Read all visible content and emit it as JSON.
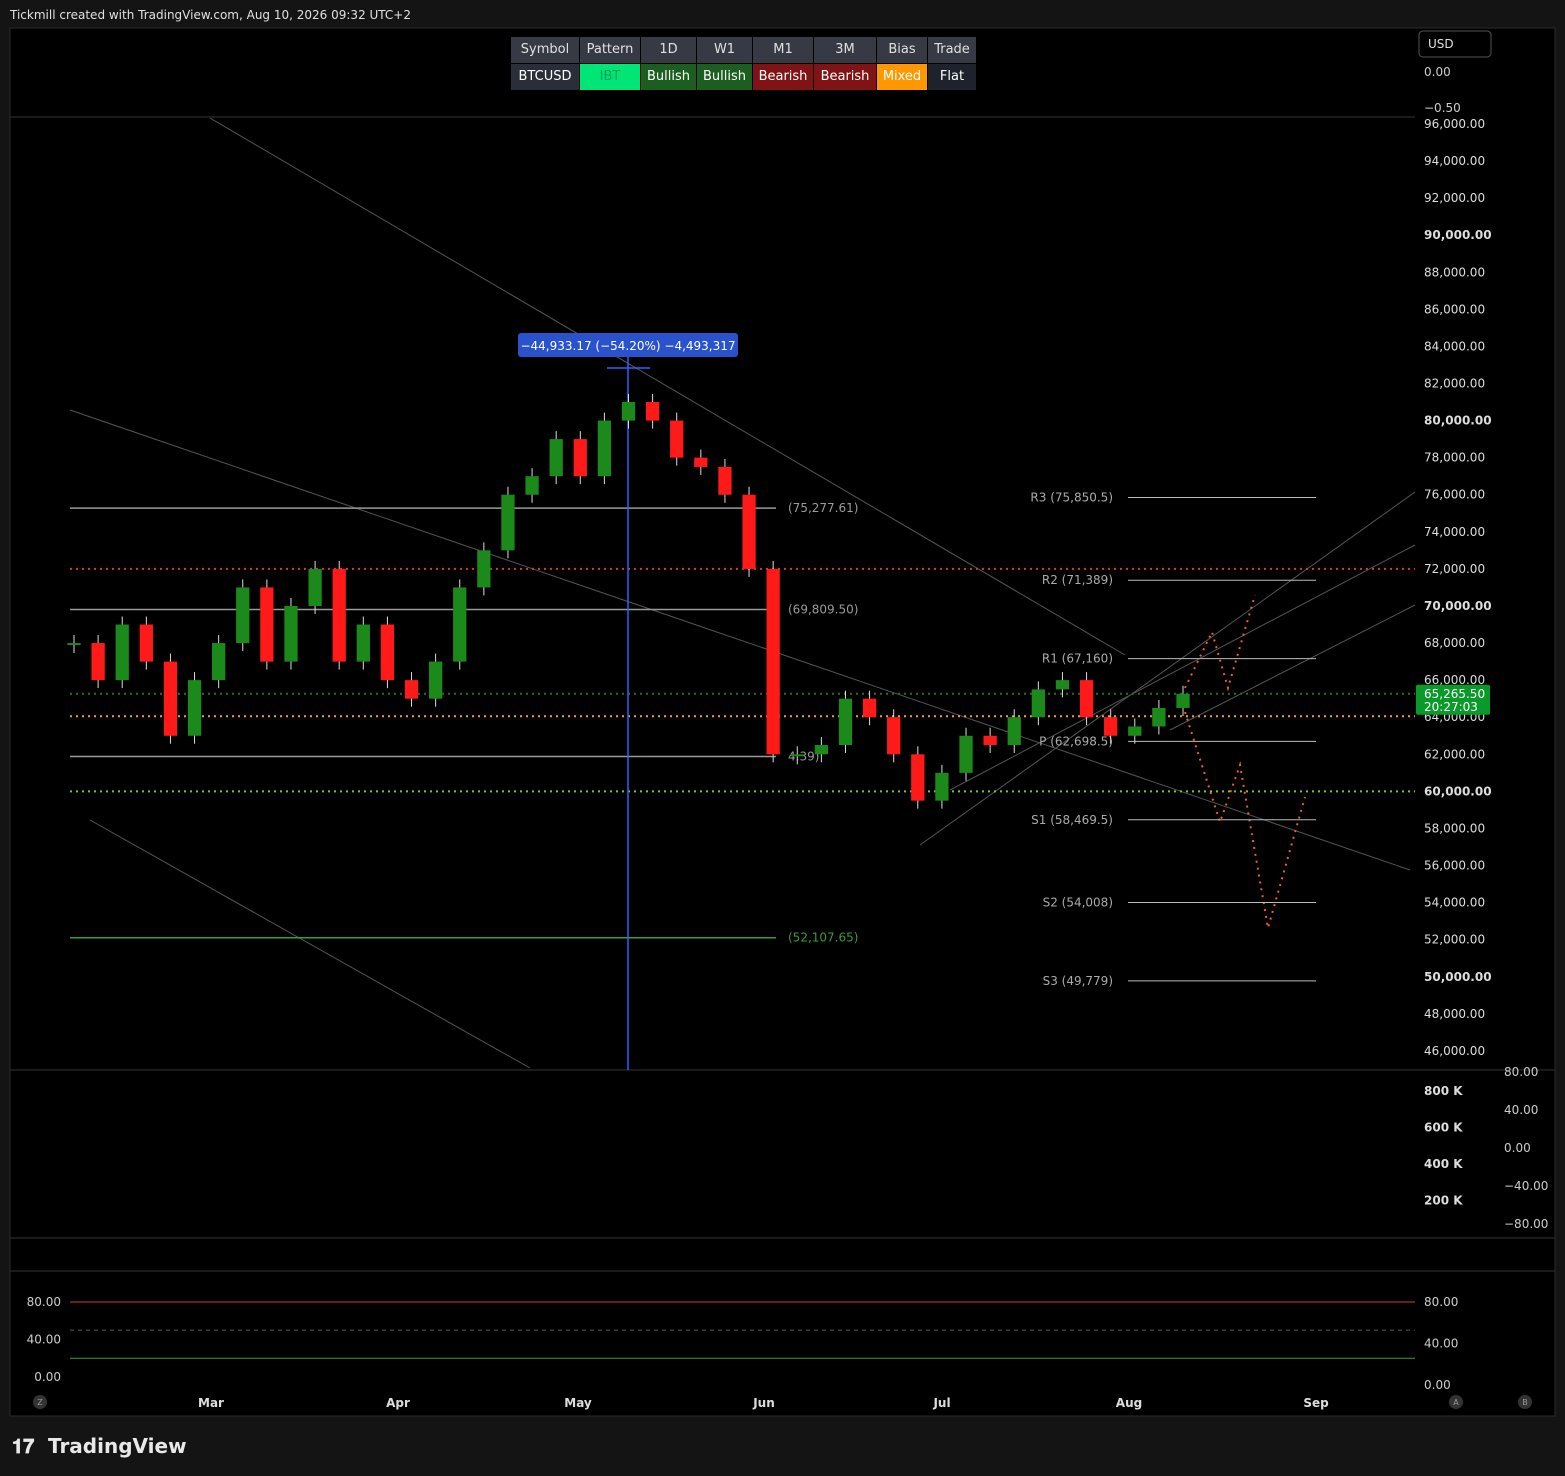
{
  "header": {
    "text": "Tickmill created with TradingView.com, Aug 10, 2026 09:32 UTC+2"
  },
  "table": {
    "header": [
      "Symbol",
      "Pattern",
      "1D",
      "W1",
      "M1",
      "3M",
      "Bias",
      "Trade"
    ],
    "row": [
      {
        "text": "BTCUSD",
        "bg": "#2a2e39",
        "fg": "#ffffff"
      },
      {
        "text": "IBT",
        "bg": "#00e676",
        "fg": "#00a152"
      },
      {
        "text": "Bullish",
        "bg": "#1b5e20",
        "fg": "#ffffff"
      },
      {
        "text": "Bullish",
        "bg": "#1b5e20",
        "fg": "#ffffff"
      },
      {
        "text": "Bearish",
        "bg": "#801414",
        "fg": "#ffffff"
      },
      {
        "text": "Bearish",
        "bg": "#801414",
        "fg": "#ffffff"
      },
      {
        "text": "Mixed",
        "bg": "#ff9800",
        "fg": "#ffffff"
      },
      {
        "text": "Flat",
        "bg": "#1e222d",
        "fg": "#ffffff"
      }
    ]
  },
  "currency": "USD",
  "top_pane": {
    "ylim": [
      -0.611,
      0.583
    ],
    "yticks": [
      {
        "value": 0,
        "label": "0.00"
      },
      {
        "value": -0.5,
        "label": "−0.50"
      }
    ]
  },
  "chart_data": {
    "type": "candlestick",
    "title": "BTCUSD",
    "closes": [
      68000,
      66000,
      69000,
      67000,
      63000,
      66000,
      68000,
      71000,
      67000,
      70000,
      72000,
      67000,
      69000,
      66000,
      65000,
      67000,
      71000,
      73000,
      76000,
      77000,
      79000,
      77000,
      80000,
      81000,
      80000,
      78000,
      77500,
      76000,
      72000,
      62000,
      62000,
      62500,
      65000,
      64000,
      62000,
      59500,
      61000,
      63000,
      62500,
      64000,
      65500,
      66000,
      64000,
      63000,
      63500,
      64500,
      65265.5
    ],
    "up_color": "#1b8a1b",
    "down_color": "#ff1a1a",
    "ylim": [
      45080,
      96320
    ],
    "yticks": [
      {
        "value": 96000,
        "label": "96,000.00"
      },
      {
        "value": 94000,
        "label": "94,000.00"
      },
      {
        "value": 92000,
        "label": "92,000.00"
      },
      {
        "value": 90000,
        "label": "90,000.00"
      },
      {
        "value": 88000,
        "label": "88,000.00"
      },
      {
        "value": 86000,
        "label": "86,000.00"
      },
      {
        "value": 84000,
        "label": "84,000.00"
      },
      {
        "value": 82000,
        "label": "82,000.00"
      },
      {
        "value": 80000,
        "label": "80,000.00"
      },
      {
        "value": 78000,
        "label": "78,000.00"
      },
      {
        "value": 76000,
        "label": "76,000.00"
      },
      {
        "value": 74000,
        "label": "74,000.00"
      },
      {
        "value": 72000,
        "label": "72,000.00"
      },
      {
        "value": 70000,
        "label": "70,000.00"
      },
      {
        "value": 68000,
        "label": "68,000.00"
      },
      {
        "value": 66000,
        "label": "66,000.00"
      },
      {
        "value": 64000,
        "label": "64,000.00"
      },
      {
        "value": 62000,
        "label": "62,000.00"
      },
      {
        "value": 60000,
        "label": "60,000.00"
      },
      {
        "value": 58000,
        "label": "58,000.00"
      },
      {
        "value": 56000,
        "label": "56,000.00"
      },
      {
        "value": 54000,
        "label": "54,000.00"
      },
      {
        "value": 52000,
        "label": "52,000.00"
      },
      {
        "value": 50000,
        "label": "50,000.00"
      },
      {
        "value": 48000,
        "label": "48,000.00"
      },
      {
        "value": 46000,
        "label": "46,000.00"
      }
    ],
    "months": [
      "Mar",
      "Apr",
      "May",
      "Jun",
      "Jul",
      "Aug",
      "Sep"
    ],
    "levels": [
      {
        "value": 75277.61,
        "label": "(75,277.61)",
        "color": "#9a9a9a"
      },
      {
        "value": 69809.5,
        "label": "(69,809.50)",
        "color": "#9a9a9a"
      },
      {
        "value": 61884.39,
        "label": "4.39)",
        "color": "#9a9a9a"
      },
      {
        "value": 52107.65,
        "label": "(52,107.65)",
        "color": "#3b9a3b"
      }
    ],
    "pivots": [
      {
        "value": 75850.5,
        "label": "R3 (75,850.5)"
      },
      {
        "value": 71389,
        "label": "R2 (71,389)"
      },
      {
        "value": 67160,
        "label": "R1 (67,160)"
      },
      {
        "value": 62698.5,
        "label": "P (62,698.5)"
      },
      {
        "value": 58469.5,
        "label": "S1 (58,469.5)"
      },
      {
        "value": 54008,
        "label": "S2 (54,008)"
      },
      {
        "value": 49779,
        "label": "S3 (49,779)"
      }
    ],
    "dotted_levels": [
      {
        "value": 72000,
        "color": "#d23b2b"
      },
      {
        "value": 64050,
        "color": "#f0a030"
      },
      {
        "value": 60000,
        "color": "#7fc24a"
      },
      {
        "value": 65265.5,
        "color": "#2e6b2e"
      }
    ],
    "measure": {
      "label": "−44,933.17 (−54.20%) −4,493,317"
    },
    "last_price": {
      "value": 65265.5,
      "label": "65,265.50",
      "countdown": "20:27:03"
    }
  },
  "volume_pane": {
    "ylim": [
      0,
      904000
    ],
    "yticks": [
      {
        "value": 800000,
        "label": "800 K"
      },
      {
        "value": 600000,
        "label": "600 K"
      },
      {
        "value": 400000,
        "label": "400 K"
      },
      {
        "value": 200000,
        "label": "200 K"
      }
    ],
    "osc_ylim": [
      -93.7,
      80
    ],
    "osc_yticks": [
      {
        "value": 80,
        "label": "80.00"
      },
      {
        "value": 40,
        "label": "40.00"
      },
      {
        "value": 0,
        "label": "0.00"
      },
      {
        "value": -40,
        "label": "−40.00"
      },
      {
        "value": -80,
        "label": "−80.00"
      }
    ]
  },
  "stoch_pane": {
    "ylim": [
      -19.2,
      112
    ],
    "yticks": [
      {
        "value": 80,
        "label": "80.00"
      },
      {
        "value": 40,
        "label": "40.00"
      },
      {
        "value": 0,
        "label": "0.00"
      }
    ],
    "y2lim": [
      -9.6,
      108.9
    ],
    "y2ticks": [
      {
        "value": 80,
        "label": "80.00"
      },
      {
        "value": 40,
        "label": "40.00"
      },
      {
        "value": 0,
        "label": "0.00"
      }
    ],
    "bands": [
      {
        "value": 80,
        "color": "#d23b2b"
      },
      {
        "value": 50,
        "color": "#555555"
      },
      {
        "value": 20,
        "color": "#3b9a3b"
      }
    ]
  },
  "buttons": [
    "Z",
    "A",
    "B"
  ],
  "footer": {
    "brand": "TradingView"
  }
}
